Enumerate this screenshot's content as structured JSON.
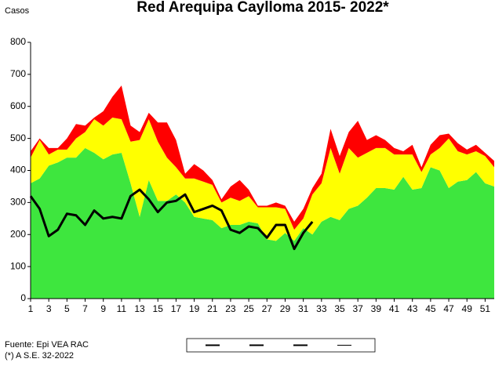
{
  "chart_data": {
    "type": "area",
    "title": "Red Arequipa Caylloma 2015- 2022*",
    "ylabel": "Casos",
    "x": [
      1,
      2,
      3,
      4,
      5,
      6,
      7,
      8,
      9,
      10,
      11,
      12,
      13,
      14,
      15,
      16,
      17,
      18,
      19,
      20,
      21,
      22,
      23,
      24,
      25,
      26,
      27,
      28,
      29,
      30,
      31,
      32,
      33,
      34,
      35,
      36,
      37,
      38,
      39,
      40,
      41,
      42,
      43,
      44,
      45,
      46,
      47,
      48,
      49,
      50,
      51,
      52
    ],
    "series": [
      {
        "kind": "stacked-area",
        "color": "#3ee63e",
        "values": [
          360,
          375,
          415,
          425,
          440,
          440,
          470,
          455,
          435,
          450,
          455,
          360,
          255,
          370,
          305,
          305,
          325,
          300,
          255,
          250,
          245,
          220,
          230,
          230,
          240,
          235,
          185,
          180,
          205,
          180,
          220,
          200,
          240,
          255,
          245,
          280,
          290,
          315,
          345,
          345,
          340,
          380,
          340,
          345,
          410,
          400,
          345,
          365,
          370,
          395,
          360,
          350
        ]
      },
      {
        "kind": "stacked-area",
        "color": "#ffff00",
        "values": [
          80,
          120,
          35,
          40,
          25,
          60,
          50,
          105,
          105,
          115,
          105,
          130,
          240,
          190,
          185,
          135,
          85,
          75,
          120,
          115,
          110,
          80,
          85,
          75,
          80,
          50,
          100,
          105,
          75,
          35,
          30,
          125,
          120,
          215,
          145,
          190,
          150,
          140,
          125,
          125,
          110,
          70,
          110,
          50,
          40,
          70,
          155,
          95,
          80,
          65,
          85,
          60
        ]
      },
      {
        "kind": "stacked-area",
        "color": "#ff0000",
        "values": [
          20,
          5,
          20,
          5,
          35,
          45,
          20,
          5,
          45,
          65,
          105,
          50,
          25,
          20,
          60,
          110,
          85,
          15,
          45,
          35,
          15,
          10,
          35,
          65,
          20,
          5,
          5,
          15,
          10,
          25,
          30,
          20,
          30,
          60,
          55,
          50,
          115,
          40,
          40,
          25,
          20,
          10,
          30,
          15,
          30,
          40,
          15,
          25,
          15,
          20,
          10,
          20
        ]
      },
      {
        "kind": "line",
        "color": "#000000",
        "values": [
          320,
          280,
          195,
          215,
          265,
          260,
          230,
          275,
          250,
          255,
          250,
          320,
          340,
          310,
          270,
          300,
          305,
          325,
          270,
          280,
          290,
          275,
          215,
          205,
          225,
          220,
          190,
          230,
          230,
          155,
          205,
          240,
          null,
          null,
          null,
          null,
          null,
          null,
          null,
          null,
          null,
          null,
          null,
          null,
          null,
          null,
          null,
          null,
          null,
          null,
          null,
          null
        ]
      }
    ],
    "xlim": [
      1,
      52
    ],
    "xticks": [
      1,
      3,
      5,
      7,
      9,
      11,
      13,
      15,
      17,
      19,
      21,
      23,
      25,
      27,
      29,
      31,
      33,
      35,
      37,
      39,
      41,
      43,
      45,
      47,
      49,
      51
    ],
    "ylim": [
      0,
      800
    ],
    "yticks": [
      0,
      100,
      200,
      300,
      400,
      500,
      600,
      700,
      800
    ],
    "source": "Fuente: Epi VEA RAC",
    "note": "(*) A S.E. 32-2022"
  }
}
